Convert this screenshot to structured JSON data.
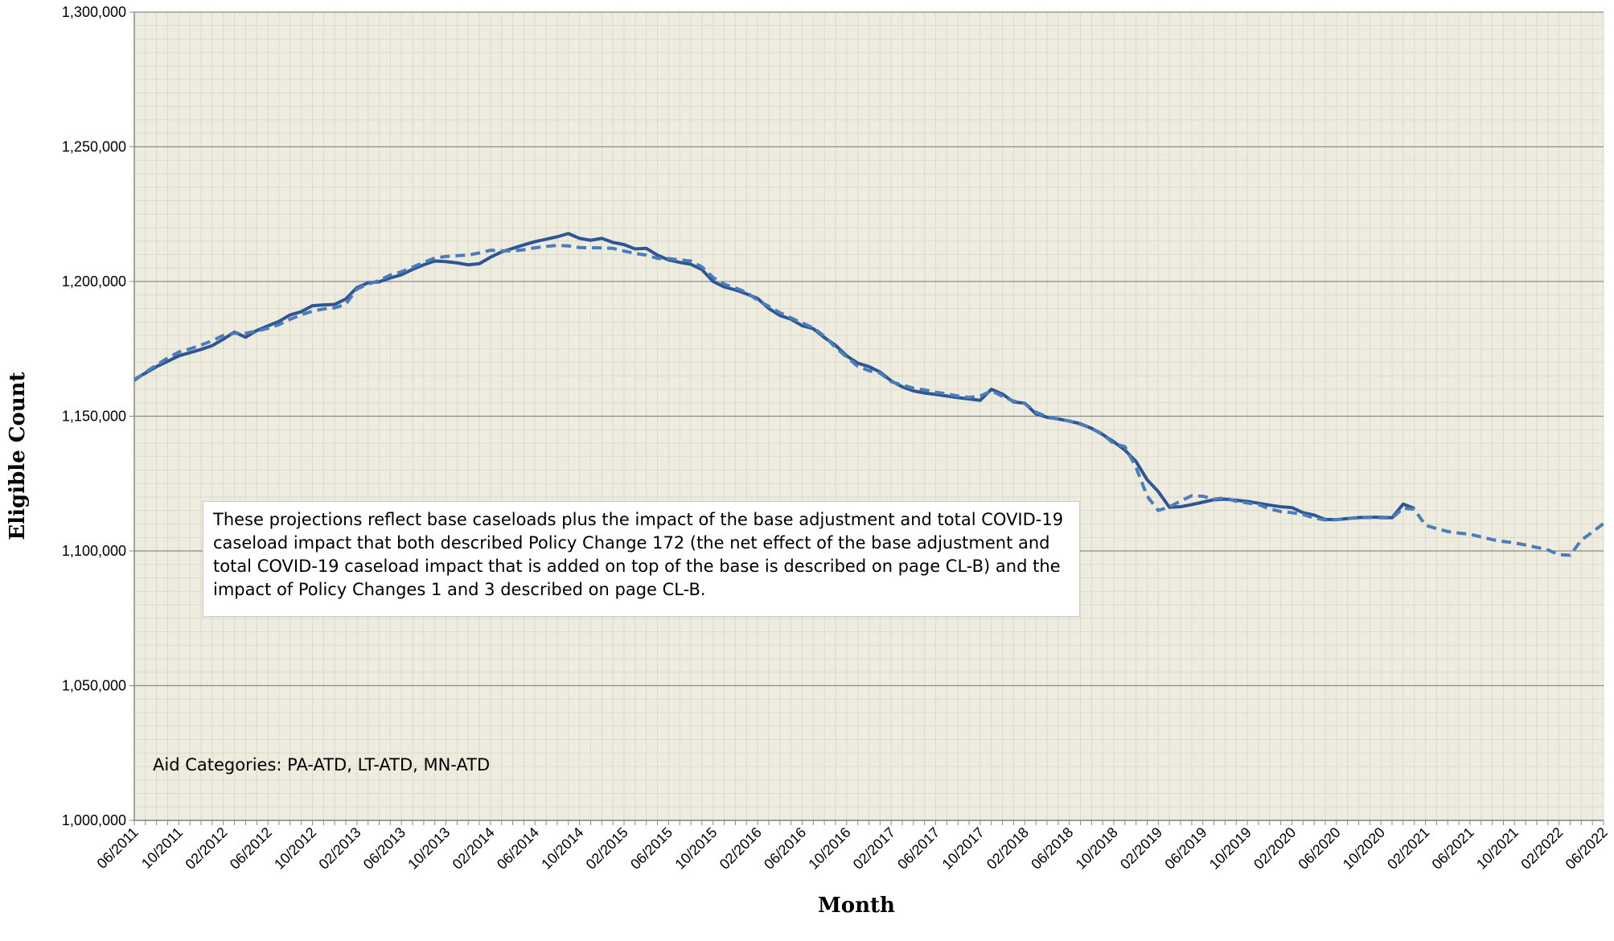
{
  "chart_data": {
    "type": "line",
    "xlabel": "Month",
    "ylabel": "Eligible Count",
    "annotations": [
      "These projections reflect base caseloads plus the impact of the base adjustment and total COVID-19 caseload impact that both described Policy Change 172 (the net effect of the base adjustment and total COVID-19 caseload impact that is added on top of the base is described on page CL-B) and the impact of Policy Changes 1 and 3 described on page CL-B.",
      "Aid Categories: PA-ATD, LT-ATD, MN-ATD"
    ],
    "categories": [
      "06/2011",
      null,
      null,
      null,
      "10/2011",
      null,
      null,
      null,
      "02/2012",
      null,
      null,
      null,
      "06/2012",
      null,
      null,
      null,
      "10/2012",
      null,
      null,
      null,
      "02/2013",
      null,
      null,
      null,
      "06/2013",
      null,
      null,
      null,
      "10/2013",
      null,
      null,
      null,
      "02/2014",
      null,
      null,
      null,
      "06/2014",
      null,
      null,
      null,
      "10/2014",
      null,
      null,
      null,
      "02/2015",
      null,
      null,
      null,
      "06/2015",
      null,
      null,
      null,
      "10/2015",
      null,
      null,
      null,
      "02/2016",
      null,
      null,
      null,
      "06/2016",
      null,
      null,
      null,
      "10/2016",
      null,
      null,
      null,
      "02/2017",
      null,
      null,
      null,
      "06/2017",
      null,
      null,
      null,
      "10/2017",
      null,
      null,
      null,
      "02/2018",
      null,
      null,
      null,
      "06/2018",
      null,
      null,
      null,
      "10/2018",
      null,
      null,
      null,
      "02/2019",
      null,
      null,
      null,
      "06/2019",
      null,
      null,
      null,
      "10/2019",
      null,
      null,
      null,
      "02/2020",
      null,
      null,
      null,
      "06/2020",
      null,
      null,
      null,
      "10/2020",
      null,
      null,
      null,
      "02/2021",
      null,
      null,
      null,
      "06/2021",
      null,
      null,
      null,
      "10/2021",
      null,
      null,
      null,
      "02/2022",
      null,
      null,
      null,
      "06/2022"
    ],
    "series": [
      {
        "color": "#2e5594",
        "style": "solid",
        "values": [
          1163600,
          1166000,
          1168400,
          1170400,
          1172400,
          1173600,
          1174800,
          1176200,
          1178600,
          1181200,
          1179300,
          1181800,
          1183500,
          1185200,
          1187600,
          1188800,
          1191000,
          1191300,
          1191500,
          1193500,
          1197700,
          1199500,
          1199900,
          1201300,
          1202500,
          1204500,
          1206200,
          1207600,
          1207400,
          1206900,
          1206200,
          1206600,
          1209000,
          1211000,
          1212300,
          1213600,
          1214800,
          1215700,
          1216600,
          1217800,
          1216000,
          1215300,
          1216000,
          1214500,
          1213700,
          1212100,
          1212300,
          1209800,
          1208000,
          1207100,
          1206400,
          1204400,
          1200000,
          1198000,
          1196900,
          1195400,
          1193700,
          1190000,
          1187400,
          1186000,
          1183600,
          1182500,
          1179200,
          1176300,
          1172400,
          1169700,
          1168400,
          1166400,
          1163100,
          1160900,
          1159400,
          1158600,
          1158100,
          1157500,
          1156900,
          1156400,
          1155900,
          1160000,
          1158200,
          1155300,
          1154800,
          1150900,
          1149600,
          1149000,
          1148200,
          1147200,
          1145500,
          1143200,
          1140500,
          1137400,
          1133200,
          1126400,
          1122000,
          1116200,
          1116400,
          1117200,
          1118100,
          1119000,
          1119200,
          1118800,
          1118400,
          1117700,
          1117000,
          1116400,
          1116100,
          1114200,
          1113300,
          1111700,
          1111600,
          1112000,
          1112400,
          1112500,
          1112500,
          1112300,
          1117400,
          1115800,
          null,
          null,
          null,
          null,
          null,
          null,
          null,
          null,
          null,
          null,
          null,
          null,
          null,
          null,
          null,
          null,
          null
        ]
      },
      {
        "color": "#4a7ebb",
        "style": "dashed",
        "values": [
          1163200,
          1166300,
          1169000,
          1171600,
          1173800,
          1175000,
          1176400,
          1178000,
          1180000,
          1180800,
          1180800,
          1181600,
          1182600,
          1184000,
          1186000,
          1187600,
          1189000,
          1189800,
          1190200,
          1191600,
          1197200,
          1199000,
          1200400,
          1202400,
          1203600,
          1205300,
          1207100,
          1208700,
          1209300,
          1209600,
          1209800,
          1210600,
          1211600,
          1211400,
          1211300,
          1211800,
          1212500,
          1213000,
          1213400,
          1213200,
          1212600,
          1212500,
          1212500,
          1212300,
          1211300,
          1210400,
          1209800,
          1208600,
          1208500,
          1208000,
          1207600,
          1205400,
          1201500,
          1199000,
          1197600,
          1196000,
          1193000,
          1190800,
          1188400,
          1186500,
          1184600,
          1182800,
          1179700,
          1175500,
          1172000,
          1168500,
          1166900,
          1166000,
          1162800,
          1161600,
          1160400,
          1159800,
          1158900,
          1158300,
          1157500,
          1157000,
          1157500,
          1159400,
          1157400,
          1155600,
          1154800,
          1151500,
          1149800,
          1149000,
          1148200,
          1147000,
          1145500,
          1143400,
          1139800,
          1138700,
          1131000,
          1120300,
          1115000,
          1116400,
          1118500,
          1120500,
          1120300,
          1119200,
          1119700,
          1118400,
          1117800,
          1117200,
          1115600,
          1114600,
          1114200,
          1113500,
          1112200,
          1111500,
          1111600,
          1112000,
          1112300,
          1112400,
          1112300,
          1112200,
          1115900,
          1115500,
          1109500,
          1108300,
          1107200,
          1106600,
          1106200,
          1105200,
          1104200,
          1103500,
          1103000,
          1102200,
          1101300,
          1100400,
          1098600,
          1098400,
          1104000,
          1107000,
          1110200
        ]
      }
    ],
    "ylim": [
      1000000,
      1300000
    ],
    "yticks": [
      {
        "value": 1000000,
        "label": "1,000,000"
      },
      {
        "value": 1050000,
        "label": "1,050,000"
      },
      {
        "value": 1100000,
        "label": "1,100,000"
      },
      {
        "value": 1150000,
        "label": "1,150,000"
      },
      {
        "value": 1200000,
        "label": "1,200,000"
      },
      {
        "value": 1250000,
        "label": "1,250,000"
      },
      {
        "value": 1300000,
        "label": "1,300,000"
      }
    ],
    "grid": true
  }
}
